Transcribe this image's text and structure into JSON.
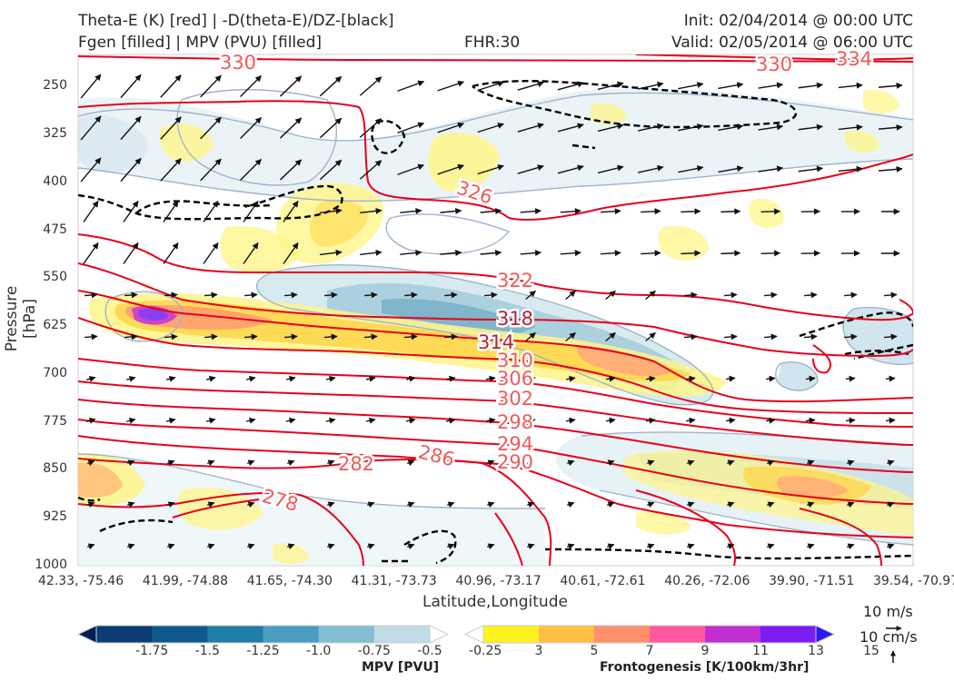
{
  "header": {
    "title_line1": "Theta-E (K) [red] | -D(theta-E)/DZ-[black]",
    "title_line2": "Fgen [filled] | MPV (PVU) [filled]",
    "fhr": "FHR:30",
    "init": "Init: 02/04/2014 @ 00:00 UTC",
    "valid": "Valid: 02/05/2014 @ 06:00 UTC"
  },
  "chart_data": {
    "type": "contour",
    "ylabel": "Pressure [hPa]",
    "xlabel": "Latitude,Longitude",
    "y_ticks": [
      "250",
      "325",
      "400",
      "475",
      "550",
      "625",
      "700",
      "775",
      "850",
      "925",
      "1000"
    ],
    "x_ticks": [
      "42.33, -75.46",
      "41.99, -74.88",
      "41.65, -74.30",
      "41.31, -73.73",
      "40.96, -73.17",
      "40.61, -72.61",
      "40.26, -72.06",
      "39.90, -71.51",
      "39.54, -70.97"
    ],
    "ylim": [
      1000,
      200
    ],
    "theta_e_contour_labels": [
      "330",
      "330",
      "334",
      "326",
      "322",
      "318",
      "314",
      "310",
      "306",
      "302",
      "298",
      "294",
      "290",
      "286",
      "282",
      "278"
    ],
    "mpv_colorbar": {
      "label": "MPV [PVU]",
      "ticks": [
        "-1.75",
        "-1.5",
        "-1.25",
        "-1.0",
        "-0.75",
        "-0.5",
        "-0.25"
      ],
      "colors": [
        "#041f5a",
        "#0b3c73",
        "#0e5a8c",
        "#1f7ea6",
        "#4a9dbf",
        "#85bdd3",
        "#c0dbe6",
        "#ffffff"
      ]
    },
    "fgen_colorbar": {
      "label": "Frontogenesis [K/100km/3hr]",
      "ticks": [
        "3",
        "5",
        "7",
        "9",
        "11",
        "13",
        "15"
      ],
      "colors": [
        "#ffffff",
        "#fff21f",
        "#ffbf44",
        "#ff8f6a",
        "#ff5aa0",
        "#c12fd2",
        "#7b1df0",
        "#2a17f5"
      ]
    },
    "wind_key": {
      "horizontal": "10 m/s",
      "vertical": "10 cm/s"
    }
  }
}
